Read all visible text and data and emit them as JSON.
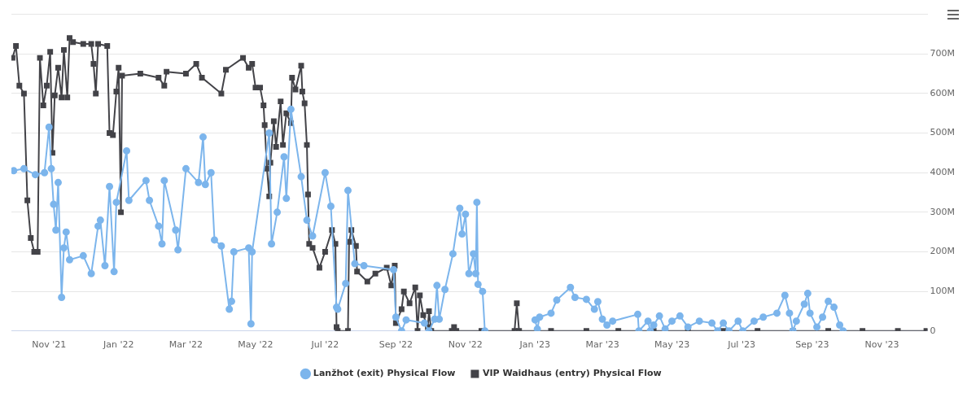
{
  "chart_data": {
    "type": "line",
    "xlim": [
      "2021-09-29",
      "2023-12-11"
    ],
    "xticks": [
      {
        "value": "2021-11-01",
        "label": "Nov '21"
      },
      {
        "value": "2022-01-01",
        "label": "Jan '22"
      },
      {
        "value": "2022-03-01",
        "label": "Mar '22"
      },
      {
        "value": "2022-05-01",
        "label": "May '22"
      },
      {
        "value": "2022-07-01",
        "label": "Jul '22"
      },
      {
        "value": "2022-09-01",
        "label": "Sep '22"
      },
      {
        "value": "2022-11-01",
        "label": "Nov '22"
      },
      {
        "value": "2023-01-01",
        "label": "Jan '23"
      },
      {
        "value": "2023-03-01",
        "label": "Mar '23"
      },
      {
        "value": "2023-05-01",
        "label": "May '23"
      },
      {
        "value": "2023-07-01",
        "label": "Jul '23"
      },
      {
        "value": "2023-09-01",
        "label": "Sep '23"
      },
      {
        "value": "2023-11-01",
        "label": "Nov '23"
      }
    ],
    "ylim": [
      0,
      800000000
    ],
    "yticks": [
      0,
      {
        "value": 100000000,
        "label": "100M"
      },
      {
        "value": 200000000,
        "label": "200M"
      },
      {
        "value": 300000000,
        "label": "300M"
      },
      {
        "value": 400000000,
        "label": "400M"
      },
      {
        "value": 500000000,
        "label": "500M"
      },
      {
        "value": 600000000,
        "label": "600M"
      },
      {
        "value": 700000000,
        "label": "700M"
      },
      {
        "value": 800000000,
        "label": null
      }
    ],
    "grid": "y",
    "legend": "bottom",
    "series": [
      {
        "name": "Lanžhot (exit) Physical Flow",
        "color": "#7cb5ec",
        "marker": "circle",
        "x": [
          "2021-10-01",
          "2021-10-10",
          "2021-10-20",
          "2021-10-28",
          "2021-11-01",
          "2021-11-03",
          "2021-11-05",
          "2021-11-07",
          "2021-11-09",
          "2021-11-12",
          "2021-11-14",
          "2021-11-16",
          "2021-11-19",
          "2021-12-01",
          "2021-12-08",
          "2021-12-14",
          "2021-12-16",
          "2021-12-20",
          "2021-12-24",
          "2021-12-28",
          "2021-12-30",
          "2022-01-08",
          "2022-01-10",
          "2022-01-25",
          "2022-01-28",
          "2022-02-05",
          "2022-02-08",
          "2022-02-10",
          "2022-02-20",
          "2022-02-22",
          "2022-03-01",
          "2022-03-12",
          "2022-03-16",
          "2022-03-18",
          "2022-03-23",
          "2022-03-26",
          "2022-04-01",
          "2022-04-08",
          "2022-04-10",
          "2022-04-12",
          "2022-04-25",
          "2022-04-27",
          "2022-04-28",
          "2022-05-13",
          "2022-05-15",
          "2022-05-20",
          "2022-05-26",
          "2022-05-28",
          "2022-06-01",
          "2022-06-10",
          "2022-06-15",
          "2022-06-20",
          "2022-07-01",
          "2022-07-06",
          "2022-07-11",
          "2022-07-12",
          "2022-07-19",
          "2022-07-21",
          "2022-07-27",
          "2022-08-04",
          "2022-08-30",
          "2022-09-01",
          "2022-09-06",
          "2022-09-10",
          "2022-09-26",
          "2022-09-30",
          "2022-10-05",
          "2022-10-07",
          "2022-10-09",
          "2022-10-14",
          "2022-10-21",
          "2022-10-27",
          "2022-10-29",
          "2022-11-01",
          "2022-11-04",
          "2022-11-08",
          "2022-11-10",
          "2022-11-11",
          "2022-11-12",
          "2022-11-16",
          "2022-11-18",
          "2022-12-01",
          "2023-01-01",
          "2023-01-03",
          "2023-01-05",
          "2023-01-15",
          "2023-01-20",
          "2023-02-01",
          "2023-02-05",
          "2023-02-15",
          "2023-02-22",
          "2023-02-25",
          "2023-03-01",
          "2023-03-05",
          "2023-03-10",
          "2023-04-01",
          "2023-04-02",
          "2023-04-10",
          "2023-04-12",
          "2023-04-15",
          "2023-04-20",
          "2023-04-25",
          "2023-05-01",
          "2023-05-08",
          "2023-05-15",
          "2023-05-25",
          "2023-06-05",
          "2023-06-10",
          "2023-06-15",
          "2023-06-20",
          "2023-06-28",
          "2023-07-02",
          "2023-07-12",
          "2023-07-20",
          "2023-08-01",
          "2023-08-08",
          "2023-08-12",
          "2023-08-15",
          "2023-08-18",
          "2023-08-25",
          "2023-08-28",
          "2023-08-30",
          "2023-09-05",
          "2023-09-10",
          "2023-09-15",
          "2023-09-20",
          "2023-09-25",
          "2023-09-28"
        ],
        "values": [
          405000000.0,
          410000000.0,
          395000000.0,
          400000000.0,
          515000000.0,
          410000000.0,
          320000000.0,
          255000000.0,
          375000000.0,
          85000000.0,
          210000000.0,
          250000000.0,
          180000000.0,
          190000000.0,
          145000000.0,
          265000000.0,
          280000000.0,
          165000000.0,
          365000000.0,
          150000000.0,
          325000000.0,
          455000000.0,
          330000000.0,
          380000000.0,
          330000000.0,
          265000000.0,
          220000000.0,
          380000000.0,
          255000000.0,
          205000000.0,
          410000000.0,
          375000000.0,
          490000000.0,
          370000000.0,
          400000000.0,
          230000000.0,
          215000000.0,
          55000000.0,
          75000000.0,
          200000000.0,
          210000000.0,
          18000000.0,
          200000000.0,
          500000000.0,
          220000000.0,
          300000000.0,
          440000000.0,
          335000000.0,
          560000000.0,
          390000000.0,
          280000000.0,
          240000000.0,
          400000000.0,
          315000000.0,
          60000000.0,
          55000000.0,
          120000000.0,
          355000000.0,
          170000000.0,
          165000000.0,
          155000000.0,
          35000000.0,
          0,
          28000000.0,
          20000000.0,
          0,
          30000000.0,
          115000000.0,
          30000000.0,
          105000000.0,
          195000000.0,
          310000000.0,
          245000000.0,
          295000000.0,
          145000000.0,
          195000000.0,
          145000000.0,
          325000000.0,
          118000000.0,
          100000000.0,
          0,
          null,
          28000000.0,
          5000000.0,
          35000000.0,
          45000000.0,
          78000000.0,
          110000000.0,
          85000000.0,
          80000000.0,
          55000000.0,
          74000000.0,
          30000000.0,
          15000000.0,
          25000000.0,
          42000000.0,
          0,
          25000000.0,
          0,
          15000000.0,
          38000000.0,
          5000000.0,
          25000000.0,
          38000000.0,
          10000000.0,
          25000000.0,
          20000000.0,
          0,
          20000000.0,
          0,
          25000000.0,
          0,
          25000000.0,
          35000000.0,
          45000000.0,
          90000000.0,
          45000000.0,
          0,
          25000000.0,
          68000000.0,
          95000000.0,
          45000000.0,
          10000000.0,
          35000000.0,
          75000000.0,
          60000000.0,
          15000000.0,
          0
        ]
      },
      {
        "name": "VIP Waidhaus (entry) Physical Flow",
        "color": "#434348",
        "marker": "square",
        "x": [
          "2021-09-30",
          "2021-10-03",
          "2021-10-06",
          "2021-10-10",
          "2021-10-13",
          "2021-10-16",
          "2021-10-19",
          "2021-10-22",
          "2021-10-24",
          "2021-10-27",
          "2021-10-30",
          "2021-11-02",
          "2021-11-04",
          "2021-11-06",
          "2021-11-09",
          "2021-11-12",
          "2021-11-14",
          "2021-11-17",
          "2021-11-19",
          "2021-11-22",
          "2021-12-01",
          "2021-12-08",
          "2021-12-10",
          "2021-12-12",
          "2021-12-14",
          "2021-12-22",
          "2021-12-24",
          "2021-12-27",
          "2021-12-30",
          "2022-01-01",
          "2022-01-03",
          "2022-01-04",
          "2022-01-20",
          "2022-02-05",
          "2022-02-10",
          "2022-02-12",
          "2022-03-01",
          "2022-03-10",
          "2022-03-15",
          "2022-04-01",
          "2022-04-05",
          "2022-04-20",
          "2022-04-25",
          "2022-04-28",
          "2022-05-01",
          "2022-05-05",
          "2022-05-08",
          "2022-05-09",
          "2022-05-11",
          "2022-05-13",
          "2022-05-14",
          "2022-05-17",
          "2022-05-19",
          "2022-05-23",
          "2022-05-25",
          "2022-05-28",
          "2022-06-01",
          "2022-06-02",
          "2022-06-05",
          "2022-06-10",
          "2022-06-11",
          "2022-06-13",
          "2022-06-15",
          "2022-06-16",
          "2022-06-17",
          "2022-06-20",
          "2022-06-26",
          "2022-07-01",
          "2022-07-07",
          "2022-07-10",
          "2022-07-11",
          "2022-07-12",
          "2022-07-21",
          "2022-07-22",
          "2022-07-24",
          "2022-07-28",
          "2022-07-29",
          "2022-08-07",
          "2022-08-14",
          "2022-08-24",
          "2022-08-28",
          "2022-08-31",
          "2022-09-01",
          "2022-09-06",
          "2022-09-08",
          "2022-09-13",
          "2022-09-18",
          "2022-09-20",
          "2022-09-22",
          "2022-09-25",
          "2022-09-29",
          "2022-09-30",
          "2022-10-02",
          "2022-10-20",
          "2022-10-22",
          "2022-10-24",
          "2022-11-15",
          "2022-12-14",
          "2022-12-16",
          "2022-12-18",
          "2023-01-15",
          "2023-02-15",
          "2023-03-15",
          "2023-04-15",
          "2023-05-15",
          "2023-06-15",
          "2023-07-15",
          "2023-08-15",
          "2023-09-15",
          "2023-10-15",
          "2023-11-15",
          "2023-12-10"
        ],
        "values": [
          690000000.0,
          720000000.0,
          620000000.0,
          600000000.0,
          330000000.0,
          235000000.0,
          200000000.0,
          200000000.0,
          690000000.0,
          570000000.0,
          620000000.0,
          705000000.0,
          450000000.0,
          595000000.0,
          665000000.0,
          590000000.0,
          710000000.0,
          590000000.0,
          740000000.0,
          730000000.0,
          725000000.0,
          725000000.0,
          675000000.0,
          600000000.0,
          725000000.0,
          720000000.0,
          500000000.0,
          495000000.0,
          605000000.0,
          665000000.0,
          300000000.0,
          645000000.0,
          650000000.0,
          640000000.0,
          620000000.0,
          655000000.0,
          650000000.0,
          675000000.0,
          640000000.0,
          600000000.0,
          660000000.0,
          690000000.0,
          665000000.0,
          675000000.0,
          615000000.0,
          615000000.0,
          570000000.0,
          520000000.0,
          410000000.0,
          340000000.0,
          425000000.0,
          530000000.0,
          465000000.0,
          580000000.0,
          470000000.0,
          550000000.0,
          525000000.0,
          640000000.0,
          610000000.0,
          670000000.0,
          605000000.0,
          575000000.0,
          470000000.0,
          345000000.0,
          220000000.0,
          210000000.0,
          160000000.0,
          200000000.0,
          255000000.0,
          220000000.0,
          10000000.0,
          0,
          0,
          225000000.0,
          255000000.0,
          215000000.0,
          150000000.0,
          125000000.0,
          145000000.0,
          160000000.0,
          115000000.0,
          165000000.0,
          20000000.0,
          55000000.0,
          100000000.0,
          70000000.0,
          110000000.0,
          0,
          90000000.0,
          40000000.0,
          10000000.0,
          50000000.0,
          0,
          0,
          10000000.0,
          0,
          0,
          0,
          70000000.0,
          0,
          0,
          0,
          0,
          0,
          0,
          0,
          0,
          0,
          0,
          0,
          0,
          0
        ]
      }
    ]
  }
}
